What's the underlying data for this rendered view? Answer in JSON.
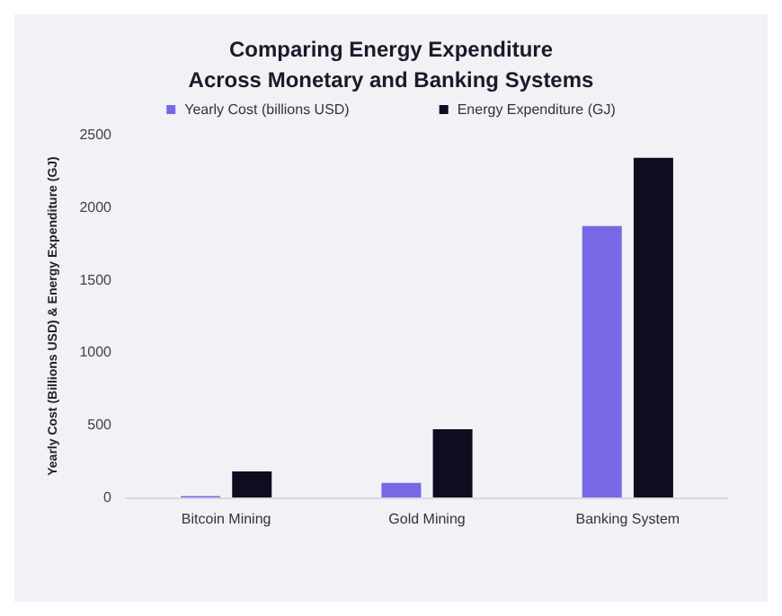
{
  "chart_data": {
    "type": "bar",
    "title": "Comparing Energy Expenditure\nAcross Monetary and Banking Systems",
    "ylabel": "Yearly Cost (Billions USD) & Energy Expenditure (GJ)",
    "categories": [
      "Bitcoin Mining",
      "Gold Mining",
      "Banking System"
    ],
    "series": [
      {
        "name": "Yearly Cost (billions USD)",
        "color": "#7868e6",
        "values": [
          10,
          100,
          1870
        ]
      },
      {
        "name": "Energy Expenditure (GJ)",
        "color": "#0d0d1f",
        "values": [
          180,
          470,
          2340
        ]
      }
    ],
    "ylim": [
      0,
      2500
    ],
    "yticks": [
      0,
      500,
      1000,
      1500,
      2000,
      2500
    ],
    "grid": false,
    "legend": "top"
  }
}
